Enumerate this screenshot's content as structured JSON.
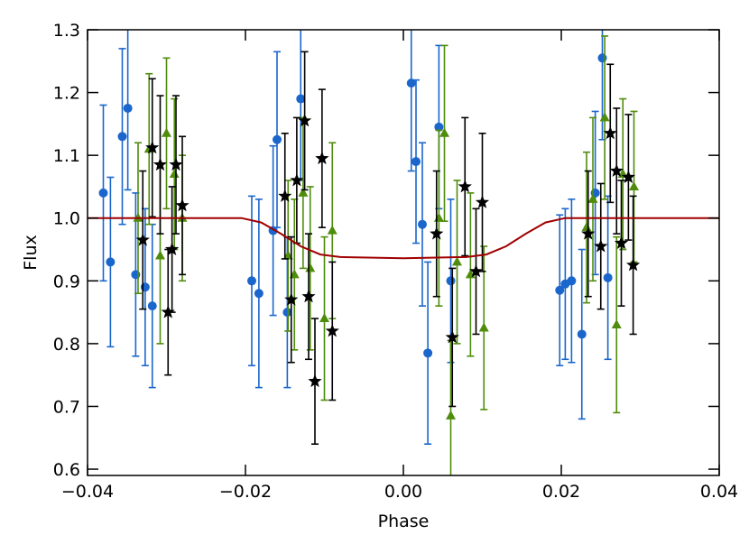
{
  "chart_data": {
    "type": "scatter",
    "xlabel": "Phase",
    "ylabel": "Flux",
    "xlim": [
      -0.04,
      0.04
    ],
    "ylim": [
      0.59,
      1.3
    ],
    "xticks": [
      {
        "value": -0.04,
        "label": "−0.04"
      },
      {
        "value": -0.02,
        "label": "−0.02"
      },
      {
        "value": 0,
        "label": "0.00"
      },
      0.02,
      0.04
    ],
    "yticks": [
      0.6,
      0.7,
      0.8,
      0.9,
      {
        "value": 1.0,
        "label": "1.0"
      },
      1.1,
      1.2,
      1.3
    ],
    "series": [
      {
        "type": "scatter",
        "marker": "circle",
        "color": "#1a66cc",
        "x": [
          -0.038,
          -0.0371,
          -0.0356,
          -0.0349,
          -0.0339,
          -0.0327,
          -0.0318,
          -0.0192,
          -0.0183,
          -0.0165,
          -0.016,
          -0.0147,
          -0.013,
          0.001,
          0.0016,
          0.0024,
          0.0031,
          0.0045,
          0.006,
          0.0198,
          0.0205,
          0.0213,
          0.0226,
          0.0243,
          0.0252,
          0.0259
        ],
        "values": [
          1.04,
          0.93,
          1.13,
          1.175,
          0.91,
          0.89,
          0.86,
          0.9,
          0.88,
          0.98,
          1.125,
          0.85,
          1.19,
          1.215,
          1.09,
          0.99,
          0.785,
          1.145,
          0.9,
          0.885,
          0.895,
          0.9,
          0.815,
          1.04,
          1.255,
          0.905
        ],
        "errors": [
          0.14,
          0.135,
          0.14,
          0.13,
          0.13,
          0.125,
          0.13,
          0.135,
          0.15,
          0.135,
          0.14,
          0.12,
          0.13,
          0.14,
          0.13,
          0.13,
          0.145,
          0.13,
          0.13,
          0.12,
          0.12,
          0.13,
          0.135,
          0.13,
          0.13,
          0.13
        ]
      },
      {
        "type": "scatter",
        "marker": "triangle",
        "color": "#4f8c0c",
        "x": [
          -0.0336,
          -0.0322,
          -0.0308,
          -0.03,
          -0.029,
          -0.028,
          -0.0146,
          -0.0138,
          -0.0127,
          -0.0118,
          -0.01,
          -0.009,
          0.0045,
          0.0052,
          0.006,
          0.0068,
          0.0085,
          0.0102,
          0.0232,
          0.024,
          0.0255,
          0.027,
          0.0278,
          0.0292
        ],
        "values": [
          1.0,
          1.11,
          0.94,
          1.135,
          1.07,
          1.0,
          0.94,
          0.91,
          1.04,
          0.92,
          0.84,
          0.98,
          1.0,
          1.135,
          0.685,
          0.93,
          0.91,
          0.825,
          0.985,
          1.03,
          1.16,
          0.83,
          1.07,
          1.05
        ],
        "errors": [
          0.12,
          0.12,
          0.14,
          0.12,
          0.12,
          0.1,
          0.12,
          0.12,
          0.12,
          0.13,
          0.13,
          0.14,
          0.14,
          0.14,
          0.12,
          0.13,
          0.13,
          0.13,
          0.12,
          0.13,
          0.13,
          0.14,
          0.12,
          0.12
        ]
      },
      {
        "type": "scatter",
        "marker": "star",
        "color": "#000000",
        "x": [
          -0.033,
          -0.0318,
          -0.0308,
          -0.0298,
          -0.0293,
          -0.0288,
          -0.028,
          -0.015,
          -0.0142,
          -0.0135,
          -0.0125,
          -0.012,
          -0.0112,
          -0.0103,
          -0.009,
          0.0042,
          0.0062,
          0.0078,
          0.0092,
          0.01,
          0.0234,
          0.025,
          0.0262,
          0.027,
          0.0276,
          0.0285,
          0.0291
        ],
        "values": [
          0.965,
          1.112,
          1.085,
          0.85,
          0.95,
          1.085,
          1.02,
          1.035,
          0.87,
          1.06,
          1.155,
          0.875,
          0.74,
          1.095,
          0.82,
          0.975,
          0.81,
          1.05,
          0.915,
          1.025,
          0.975,
          0.955,
          1.135,
          1.075,
          0.96,
          1.065,
          0.925
        ],
        "errors": [
          0.11,
          0.11,
          0.11,
          0.1,
          0.1,
          0.11,
          0.11,
          0.1,
          0.1,
          0.1,
          0.11,
          0.1,
          0.1,
          0.11,
          0.11,
          0.1,
          0.11,
          0.11,
          0.1,
          0.11,
          0.1,
          0.1,
          0.11,
          0.1,
          0.1,
          0.1,
          0.11
        ]
      },
      {
        "type": "line",
        "color": "#a00000",
        "x": [
          -0.04,
          -0.0205,
          -0.018,
          -0.0155,
          -0.013,
          -0.0105,
          -0.008,
          0,
          0.008,
          0.0105,
          0.013,
          0.0155,
          0.018,
          0.0205,
          0.04
        ],
        "values": [
          1,
          1,
          0.993,
          0.975,
          0.955,
          0.942,
          0.938,
          0.936,
          0.938,
          0.942,
          0.955,
          0.975,
          0.993,
          1,
          1
        ]
      }
    ]
  }
}
